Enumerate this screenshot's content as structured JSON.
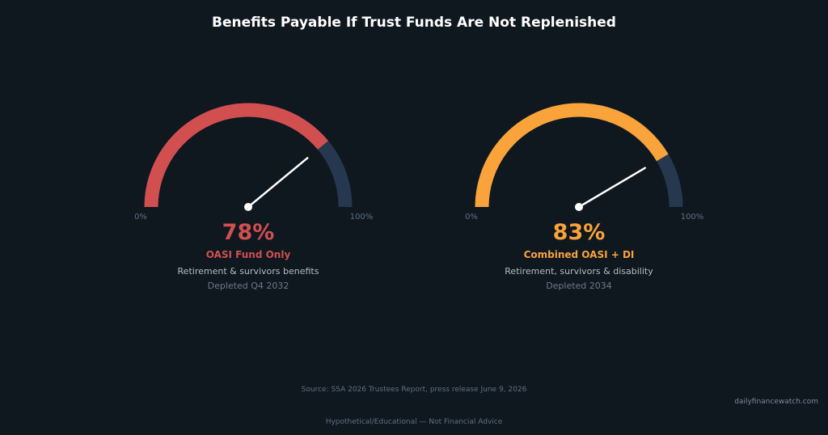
{
  "chart_data": {
    "type": "gauge",
    "title": "Benefits Payable If Trust Funds Are Not Replenished",
    "range": [
      0,
      100
    ],
    "min_label": "0%",
    "max_label": "100%",
    "gauges": [
      {
        "value": 78,
        "value_label": "78%",
        "name": "OASI Fund Only",
        "description": "Retirement & survivors benefits",
        "depletion": "Depleted Q4 2032",
        "color": "#d24f50"
      },
      {
        "value": 83,
        "value_label": "83%",
        "name": "Combined OASI + DI",
        "description": "Retirement, survivors & disability",
        "depletion": "Depleted 2034",
        "color": "#f9a33a"
      }
    ],
    "track_color": "#263750",
    "needle_color": "#ffffff"
  },
  "footer": {
    "source": "Source: SSA 2026 Trustees Report, press release June 9, 2026",
    "disclaimer": "Hypothetical/Educational — Not Financial Advice",
    "watermark": "dailyfinancewatch.com"
  }
}
